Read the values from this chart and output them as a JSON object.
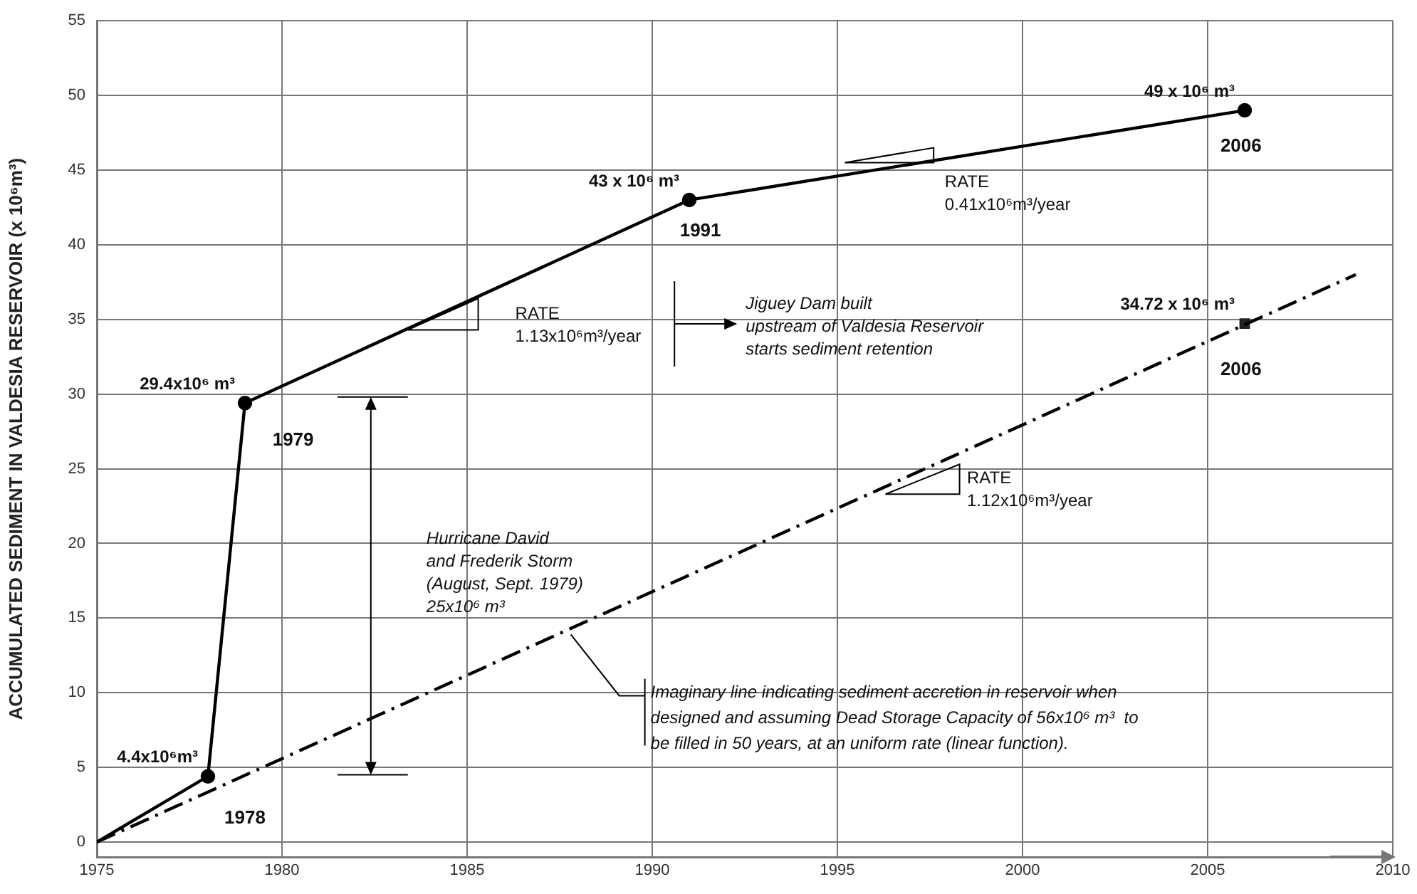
{
  "chart_data": {
    "type": "line",
    "ylabel": "ACCUMULATED SEDIMENT IN VALDESIA RESERVOIR (x 10⁶m³)",
    "xlim": [
      1975,
      2010
    ],
    "xticks": [
      1975,
      1980,
      1985,
      1990,
      1995,
      2000,
      2005,
      2010
    ],
    "ylim": [
      -1,
      55
    ],
    "yticks": [
      0,
      5,
      10,
      15,
      20,
      25,
      30,
      35,
      40,
      45,
      50,
      55
    ],
    "grid": true,
    "legend": false,
    "ref_lines": [
      {
        "axis": "x",
        "value": 1990.6,
        "label": "Jiguey Dam built\nupstream of Valdesia Reservoir\nstarts sediment retention"
      }
    ],
    "series": [
      {
        "type": "line",
        "color": "#000000",
        "x": [
          1975,
          1978,
          1979,
          1991,
          2006
        ],
        "values": [
          0,
          4.4,
          29.4,
          43,
          49
        ],
        "marker": "circle",
        "line_style": "solid",
        "value_labels": [
          null,
          "4.4x10⁶m³",
          "29.4x10⁶ m³",
          "43 x 10⁶ m³",
          "49 x 10⁶ m³"
        ]
      },
      {
        "type": "line",
        "color": "#000000",
        "x": [
          1975,
          2009
        ],
        "values": [
          0,
          38
        ],
        "marker": "none",
        "line_style": "dashed"
      },
      {
        "type": "scatter",
        "color": "#222222",
        "x": [
          2006
        ],
        "values": [
          34.72
        ],
        "marker": "square",
        "value_labels": [
          "34.72 x 10⁶ m³"
        ]
      }
    ],
    "annotations": [
      "1978",
      "1979",
      "1991",
      "2006",
      "2006",
      "RATE\n1.13x10⁶m³/year",
      "RATE\n0.41x10⁶m³/year",
      "RATE\n1.12x10⁶m³/year",
      "Hurricane David\nand Frederik Storm\n(August, Sept. 1979)\n25x10⁶ m³",
      {
        "text": "Imaginary line indicating sediment accretion in reservoir when\ndesigned and assuming Dead Storage Capacity of 56x10⁶ m³  to\nbe filled in 50 years, at an uniform rate (linear function).",
        "x": 1987.8,
        "y": 13.9
      }
    ]
  }
}
